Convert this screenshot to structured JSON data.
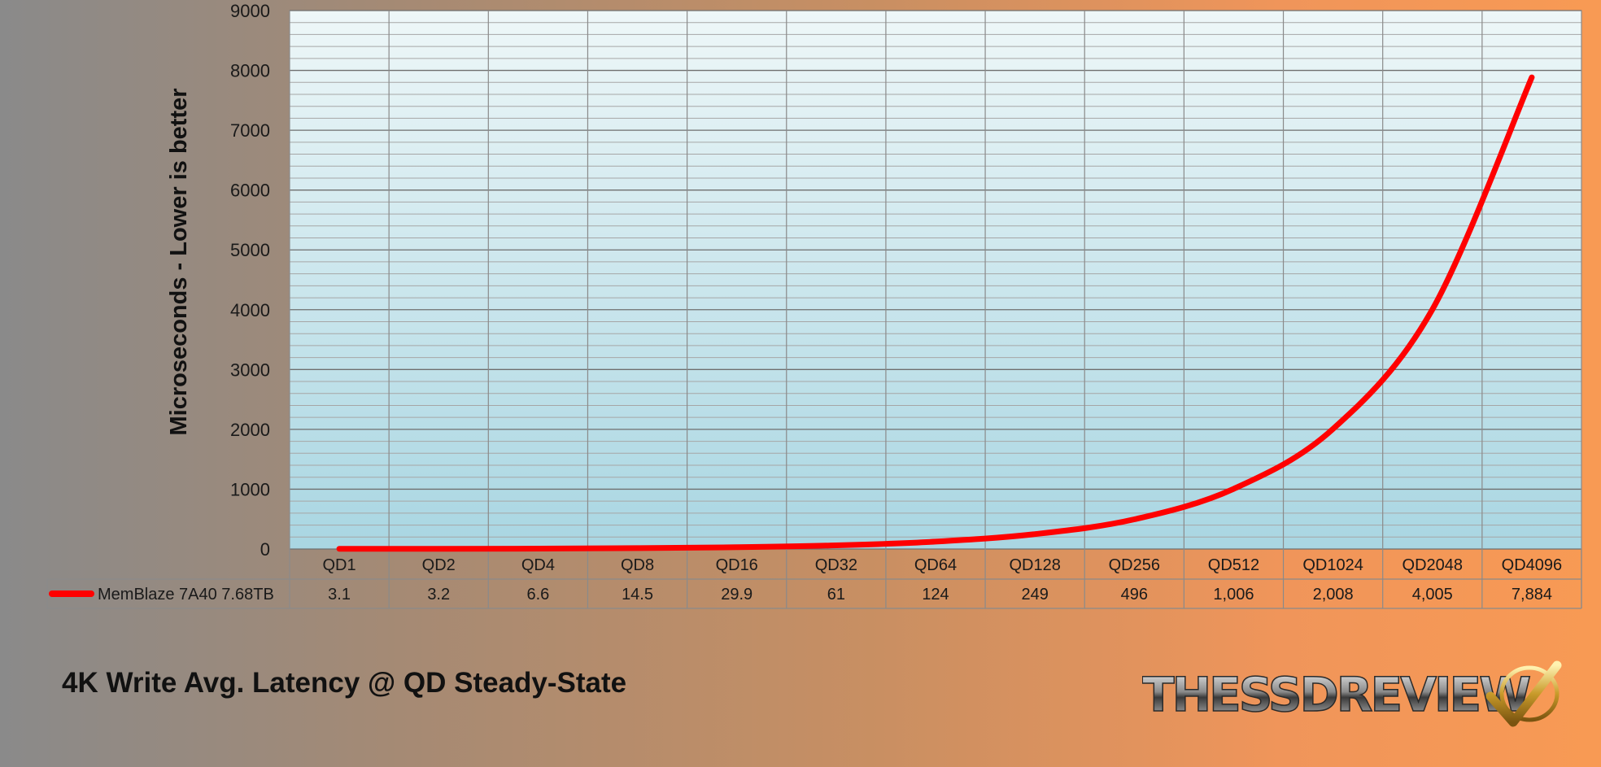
{
  "chart_data": {
    "type": "line",
    "title": "4K Write Avg. Latency @ QD Steady-State",
    "ylabel": "Microseconds - Lower is better",
    "xlabel": "",
    "ylim": [
      0,
      9000
    ],
    "yticks": [
      0,
      1000,
      2000,
      3000,
      4000,
      5000,
      6000,
      7000,
      8000,
      9000
    ],
    "minor_step": 200,
    "grid": true,
    "categories": [
      "QD1",
      "QD2",
      "QD4",
      "QD8",
      "QD16",
      "QD32",
      "QD64",
      "QD128",
      "QD256",
      "QD512",
      "QD1024",
      "QD2048",
      "QD4096"
    ],
    "series": [
      {
        "name": "MemBlaze 7A40 7.68TB",
        "color": "#ff0000",
        "values": [
          3.1,
          3.2,
          6.6,
          14.5,
          29.9,
          61,
          124,
          249,
          496,
          1006,
          2008,
          4005,
          7884
        ],
        "value_labels": [
          "3.1",
          "3.2",
          "6.6",
          "14.5",
          "29.9",
          "61",
          "124",
          "249",
          "496",
          "1,006",
          "2,008",
          "4,005",
          "7,884"
        ]
      }
    ],
    "legend": "data-table-bottom"
  },
  "logo": {
    "text": "THESSDREVIEW",
    "icon": "checkmark-icon"
  }
}
